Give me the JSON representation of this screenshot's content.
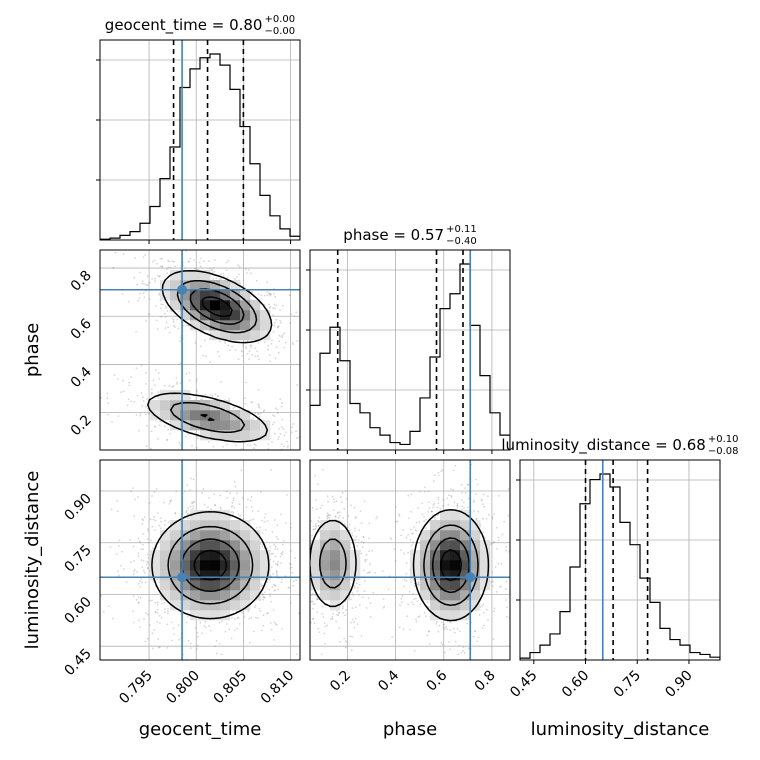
{
  "chart_data": {
    "type": "corner",
    "parameters": [
      "geocent_time",
      "phase",
      "luminosity_distance"
    ],
    "truths": {
      "geocent_time": 0.7985,
      "phase": 0.71,
      "luminosity_distance": 0.65
    },
    "axes": {
      "geocent_time": {
        "label": "geocent_time",
        "range": [
          0.7898,
          0.811
        ],
        "ticks": [
          0.795,
          0.8,
          0.805,
          0.81
        ],
        "tick_labels": [
          "0.795",
          "0.800",
          "0.805",
          "0.810"
        ]
      },
      "phase": {
        "label": "phase",
        "range": [
          0.045,
          0.875
        ],
        "ticks": [
          0.2,
          0.4,
          0.6,
          0.8
        ],
        "tick_labels": [
          "0.2",
          "0.4",
          "0.6",
          "0.8"
        ]
      },
      "luminosity_distance": {
        "label": "luminosity_distance",
        "range": [
          0.41,
          0.99
        ],
        "ticks": [
          0.45,
          0.6,
          0.75,
          0.9
        ],
        "tick_labels": [
          "0.45",
          "0.60",
          "0.75",
          "0.90"
        ]
      }
    },
    "titles": [
      {
        "param": "geocent_time",
        "text": "geocent_time = 0.80",
        "plus": "+0.00",
        "minus": "−0.00"
      },
      {
        "param": "phase",
        "text": "phase = 0.57",
        "plus": "+0.11",
        "minus": "−0.40"
      },
      {
        "param": "luminosity_distance",
        "text": "luminosity_distance = 0.68",
        "plus": "+0.10",
        "minus": "−0.08"
      }
    ],
    "histograms": {
      "geocent_time": {
        "bin_start": 0.7898,
        "bin_width": 0.00106,
        "counts": [
          0.4,
          1.0,
          2.5,
          4.5,
          9.0,
          18.0,
          33.0,
          50.0,
          82.0,
          92.0,
          98.0,
          100.0,
          94.0,
          81.0,
          61.0,
          41.0,
          24.0,
          13.0,
          6.0,
          2.0
        ],
        "quantiles": [
          0.7976,
          0.8012,
          0.805
        ]
      },
      "phase": {
        "bin_start": 0.045,
        "bin_width": 0.0415,
        "counts": [
          24.0,
          52.0,
          66.0,
          48.0,
          25.0,
          20.0,
          12.0,
          8.0,
          4.0,
          3.0,
          10.0,
          28.0,
          50.0,
          76.0,
          84.0,
          100.0,
          67.0,
          40.0,
          20.0,
          8.0
        ],
        "quantiles": [
          0.16,
          0.57,
          0.68
        ]
      },
      "luminosity_distance": {
        "bin_start": 0.41,
        "bin_width": 0.029,
        "counts": [
          1.0,
          4.0,
          8.0,
          14.0,
          26.0,
          50.0,
          84.0,
          97.0,
          100.0,
          93.0,
          74.0,
          62.0,
          44.0,
          31.0,
          17.0,
          11.0,
          8.0,
          4.0,
          3.0,
          1.5
        ],
        "quantiles": [
          0.6,
          0.68,
          0.78
        ]
      }
    },
    "pair_densities": [
      {
        "x": "geocent_time",
        "y": "phase",
        "components": [
          {
            "mx": 0.8022,
            "my": 0.64,
            "sx": 0.0028,
            "sy": 0.072,
            "rho": -0.5,
            "w": 0.62
          },
          {
            "mx": 0.8012,
            "my": 0.18,
            "sx": 0.0035,
            "sy": 0.055,
            "rho": -0.55,
            "w": 0.38
          }
        ]
      },
      {
        "x": "geocent_time",
        "y": "luminosity_distance",
        "components": [
          {
            "mx": 0.8015,
            "my": 0.685,
            "sx": 0.003,
            "sy": 0.075,
            "rho": 0.0,
            "w": 1.0
          }
        ]
      },
      {
        "x": "phase",
        "y": "luminosity_distance",
        "components": [
          {
            "mx": 0.63,
            "my": 0.685,
            "sx": 0.075,
            "sy": 0.078,
            "rho": 0.0,
            "w": 0.65
          },
          {
            "mx": 0.14,
            "my": 0.69,
            "sx": 0.055,
            "sy": 0.072,
            "rho": 0.0,
            "w": 0.35
          }
        ]
      }
    ],
    "grid": true,
    "colors": {
      "truth": "#4682b4",
      "line": "#000000",
      "grid": "#b0b0b0",
      "scatter": "#8c8c8c"
    }
  }
}
